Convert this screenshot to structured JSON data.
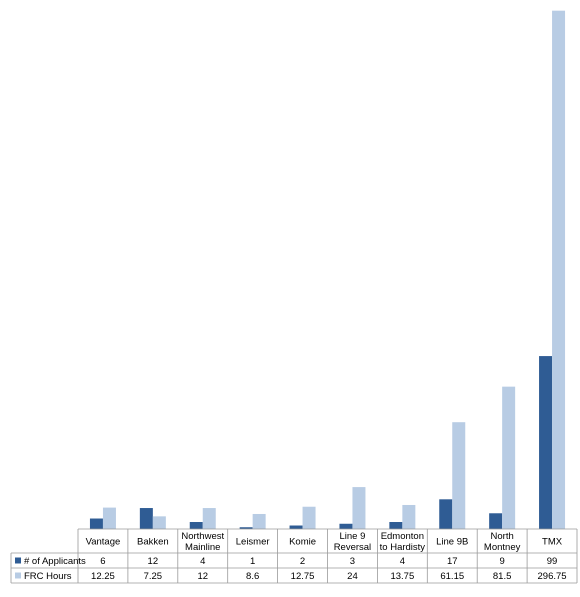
{
  "chart_data": {
    "type": "bar",
    "categories": [
      [
        "Vantage"
      ],
      [
        "Bakken"
      ],
      [
        "Northwest",
        "Mainline"
      ],
      [
        "Leismer"
      ],
      [
        "Komie"
      ],
      [
        "Line 9",
        "Reversal"
      ],
      [
        "Edmonton",
        "to Hardisty"
      ],
      [
        "Line 9B"
      ],
      [
        "North",
        "Montney"
      ],
      [
        "TMX"
      ]
    ],
    "series": [
      {
        "name": "# of Applicants",
        "color": "#2f5c94",
        "values": [
          6,
          12,
          4,
          1,
          2,
          3,
          4,
          17,
          9,
          99
        ],
        "labels": [
          "6",
          "12",
          "4",
          "1",
          "2",
          "3",
          "4",
          "17",
          "9",
          "99"
        ]
      },
      {
        "name": "FRC Hours",
        "color": "#b8cce4",
        "values": [
          12.25,
          7.25,
          12,
          8.6,
          12.75,
          24,
          13.75,
          61.15,
          81.5,
          296.75
        ],
        "labels": [
          "12.25",
          "7.25",
          "12",
          "8.6",
          "12.75",
          "24",
          "13.75",
          "61.15",
          "81.5",
          "296.75"
        ]
      }
    ],
    "ylim": [
      0,
      300
    ],
    "grid": false,
    "legend": "data-table-left"
  }
}
